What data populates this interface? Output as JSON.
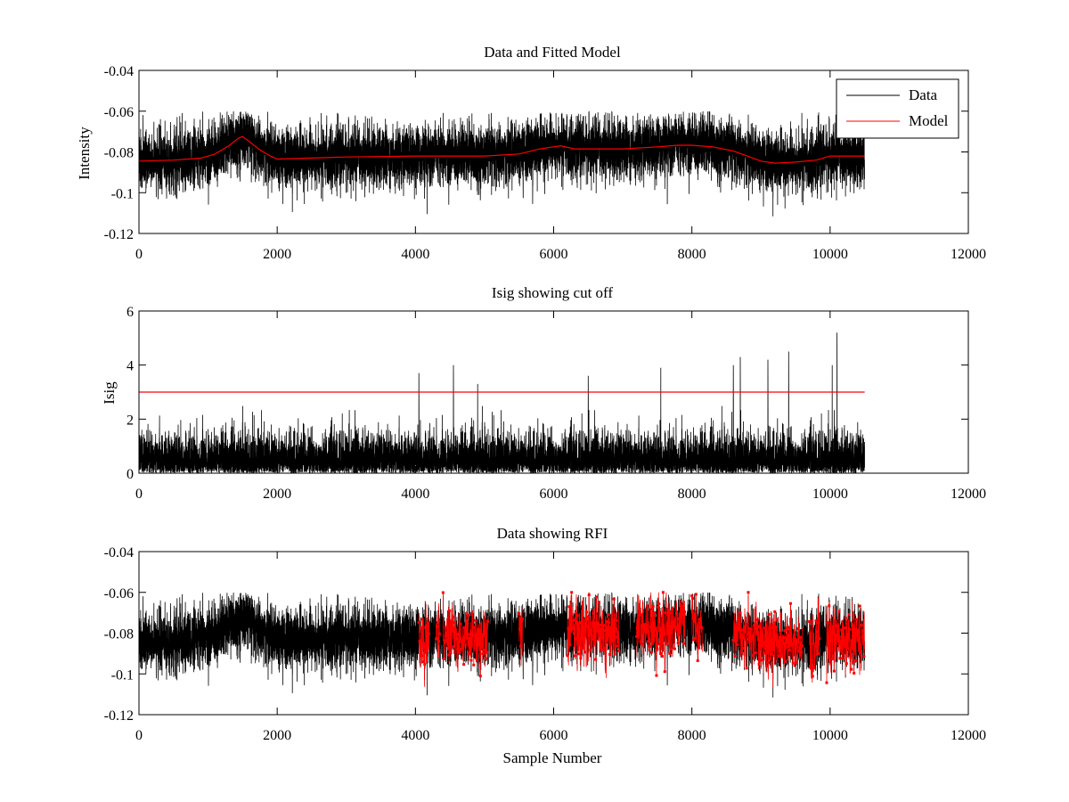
{
  "chart_data": [
    {
      "type": "line",
      "title": "Data and Fitted Model",
      "xlabel": "",
      "ylabel": "Intensity",
      "xlim": [
        0,
        12000
      ],
      "ylim": [
        -0.12,
        -0.04
      ],
      "xticks": [
        0,
        2000,
        4000,
        6000,
        8000,
        10000,
        12000
      ],
      "yticks": [
        -0.12,
        -0.1,
        -0.08,
        -0.06,
        -0.04
      ],
      "xtick_labels": [
        "0",
        "2000",
        "4000",
        "6000",
        "8000",
        "10000",
        "12000"
      ],
      "ytick_labels": [
        "-0.12",
        "-0.1",
        "-0.08",
        "-0.06",
        "-0.04"
      ],
      "legend": {
        "position": "top-right",
        "entries": [
          "Data",
          "Model"
        ]
      },
      "grid": false,
      "series": [
        {
          "name": "Data",
          "color": "#000000",
          "x_range": [
            0,
            10500
          ],
          "n_points": 10500,
          "noise_sigma": 0.0075,
          "note_shape": "noisy trace around the model baseline",
          "envelope_max_points": [
            [
              0,
              -0.072
            ],
            [
              1500,
              -0.062
            ],
            [
              2400,
              -0.066
            ],
            [
              6000,
              -0.061
            ],
            [
              8000,
              -0.062
            ],
            [
              9200,
              -0.068
            ],
            [
              10500,
              -0.069
            ]
          ],
          "envelope_min_points": [
            [
              0,
              -0.1
            ],
            [
              2000,
              -0.106
            ],
            [
              4200,
              -0.108
            ],
            [
              9200,
              -0.113
            ],
            [
              10100,
              -0.117
            ],
            [
              10500,
              -0.1
            ]
          ]
        },
        {
          "name": "Model",
          "color": "#ff0000",
          "x": [
            0,
            500,
            900,
            1100,
            1300,
            1450,
            1500,
            1600,
            1750,
            1900,
            2000,
            3000,
            4000,
            5000,
            5500,
            5800,
            6000,
            6100,
            6300,
            6700,
            7000,
            7500,
            7800,
            8000,
            8300,
            8600,
            8800,
            9000,
            9200,
            9500,
            9800,
            10000,
            10500
          ],
          "y": [
            -0.0845,
            -0.084,
            -0.083,
            -0.081,
            -0.077,
            -0.073,
            -0.0725,
            -0.075,
            -0.079,
            -0.082,
            -0.0835,
            -0.0825,
            -0.082,
            -0.082,
            -0.081,
            -0.0785,
            -0.0775,
            -0.077,
            -0.0785,
            -0.0785,
            -0.0785,
            -0.0775,
            -0.0767,
            -0.0767,
            -0.0775,
            -0.0795,
            -0.082,
            -0.0845,
            -0.0855,
            -0.085,
            -0.084,
            -0.082,
            -0.082
          ]
        }
      ]
    },
    {
      "type": "line",
      "title": "Isig showing cut off",
      "xlabel": "",
      "ylabel": "Isig",
      "xlim": [
        0,
        12000
      ],
      "ylim": [
        0,
        6
      ],
      "xticks": [
        0,
        2000,
        4000,
        6000,
        8000,
        10000,
        12000
      ],
      "yticks": [
        0,
        2,
        4,
        6
      ],
      "xtick_labels": [
        "0",
        "2000",
        "4000",
        "6000",
        "8000",
        "10000",
        "12000"
      ],
      "ytick_labels": [
        "0",
        "2",
        "4",
        "6"
      ],
      "grid": false,
      "series": [
        {
          "name": "Isig",
          "color": "#000000",
          "x_range": [
            0,
            10500
          ],
          "n_points": 10500,
          "typical_max": 1.8,
          "peaks": [
            [
              4050,
              3.7
            ],
            [
              4550,
              4.0
            ],
            [
              4900,
              3.3
            ],
            [
              6500,
              3.6
            ],
            [
              7550,
              3.9
            ],
            [
              8600,
              4.0
            ],
            [
              8700,
              4.3
            ],
            [
              9100,
              4.2
            ],
            [
              9400,
              4.5
            ],
            [
              10030,
              4.0
            ],
            [
              10100,
              5.2
            ]
          ]
        },
        {
          "name": "Cut off",
          "color": "#ff0000",
          "x": [
            0,
            10500
          ],
          "y": [
            3,
            3
          ]
        }
      ]
    },
    {
      "type": "line",
      "title": "Data showing RFI",
      "xlabel": "Sample Number",
      "ylabel": "",
      "xlim": [
        0,
        12000
      ],
      "ylim": [
        -0.12,
        -0.04
      ],
      "xticks": [
        0,
        2000,
        4000,
        6000,
        8000,
        10000,
        12000
      ],
      "yticks": [
        -0.12,
        -0.1,
        -0.08,
        -0.06,
        -0.04
      ],
      "xtick_labels": [
        "0",
        "2000",
        "4000",
        "6000",
        "8000",
        "10000",
        "12000"
      ],
      "ytick_labels": [
        "-0.12",
        "-0.1",
        "-0.08",
        "-0.06",
        "-0.04"
      ],
      "grid": false,
      "series": [
        {
          "name": "Data",
          "color": "#000000",
          "x_range": [
            0,
            10500
          ],
          "n_points": 10500
        },
        {
          "name": "RFI",
          "color": "#ff0000",
          "marker": "point",
          "flagged_x_ranges": [
            [
              4050,
              4200
            ],
            [
              4300,
              4350
            ],
            [
              4400,
              5050
            ],
            [
              5500,
              5550
            ],
            [
              6200,
              6950
            ],
            [
              7200,
              7900
            ],
            [
              8000,
              8150
            ],
            [
              8600,
              9600
            ],
            [
              9700,
              9850
            ],
            [
              9950,
              10500
            ]
          ]
        }
      ]
    }
  ]
}
